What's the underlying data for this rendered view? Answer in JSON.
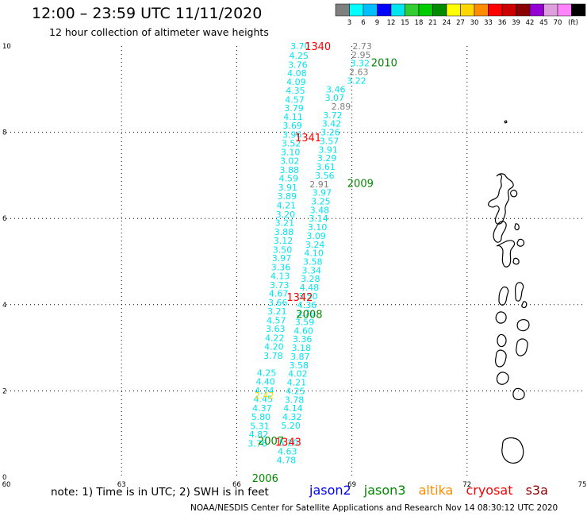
{
  "header": {
    "title": "12:00 – 23:59 UTC 11/11/2020",
    "subtitle": "12 hour collection of altimeter wave heights"
  },
  "colorbar": {
    "unit_label": "(ft)",
    "levels": [
      "3",
      "6",
      "9",
      "12",
      "15",
      "18",
      "21",
      "24",
      "27",
      "30",
      "33",
      "36",
      "39",
      "42",
      "45",
      "70"
    ],
    "colors": [
      "#7f7f7f",
      "#00ffff",
      "#00bfff",
      "#0000ff",
      "#00e5ee",
      "#32cd32",
      "#00cd00",
      "#008b00",
      "#ffff00",
      "#ffd700",
      "#ff8c00",
      "#ff0000",
      "#cd0000",
      "#8b0000",
      "#9400d3",
      "#dda0dd",
      "#ff83fa",
      "#000000"
    ]
  },
  "footer": {
    "note": "note: 1) Time is in UTC; 2) SWH is in feet",
    "satellites": [
      {
        "name": "jason2",
        "color": "#0000ff"
      },
      {
        "name": "jason3",
        "color": "#008800"
      },
      {
        "name": "altika",
        "color": "#ff8c00"
      },
      {
        "name": "cryosat",
        "color": "#ff0000"
      },
      {
        "name": "s3a",
        "color": "#8b0000"
      }
    ],
    "credit": "NOAA/NESDIS Center for Satellite Applications and Research    Nov 14 08:30:12 UTC 2020"
  },
  "chart_data": {
    "type": "scatter",
    "title": "12:00 – 23:59 UTC 11/11/2020",
    "xlim": [
      60,
      75
    ],
    "ylim": [
      0,
      10
    ],
    "x_ticks": [
      60,
      63,
      66,
      69,
      72,
      75
    ],
    "y_ticks": [
      0,
      2,
      4,
      6,
      8,
      10
    ],
    "grid": "dotted",
    "series": [
      {
        "name": "",
        "color": "#00e5ee",
        "points": [
          {
            "x": 67.65,
            "y": 10.0,
            "label": "3.70"
          },
          {
            "x": 67.62,
            "y": 9.78,
            "label": "4.25"
          },
          {
            "x": 67.59,
            "y": 9.57,
            "label": "3.76"
          },
          {
            "x": 67.57,
            "y": 9.37,
            "label": "4.08"
          },
          {
            "x": 67.55,
            "y": 9.17,
            "label": "4.09"
          },
          {
            "x": 67.53,
            "y": 8.97,
            "label": "4.35"
          },
          {
            "x": 67.51,
            "y": 8.76,
            "label": "4.57"
          },
          {
            "x": 67.49,
            "y": 8.56,
            "label": "3.79"
          },
          {
            "x": 67.47,
            "y": 8.36,
            "label": "4.11"
          },
          {
            "x": 67.45,
            "y": 8.16,
            "label": "3.69"
          },
          {
            "x": 67.44,
            "y": 7.95,
            "label": "3.96"
          },
          {
            "x": 67.42,
            "y": 7.74,
            "label": "3.52"
          },
          {
            "x": 67.4,
            "y": 7.54,
            "label": "3.10"
          },
          {
            "x": 67.38,
            "y": 7.34,
            "label": "3.02"
          },
          {
            "x": 67.37,
            "y": 7.13,
            "label": "3.88"
          },
          {
            "x": 67.35,
            "y": 6.93,
            "label": "4.59"
          },
          {
            "x": 67.33,
            "y": 6.72,
            "label": "3.91"
          },
          {
            "x": 67.31,
            "y": 6.52,
            "label": "3.89"
          },
          {
            "x": 67.29,
            "y": 6.31,
            "label": "4.21"
          },
          {
            "x": 67.27,
            "y": 6.1,
            "label": "3.20"
          },
          {
            "x": 67.25,
            "y": 5.9,
            "label": "3.21"
          },
          {
            "x": 67.23,
            "y": 5.69,
            "label": "3.88"
          },
          {
            "x": 67.21,
            "y": 5.49,
            "label": "3.12"
          },
          {
            "x": 67.19,
            "y": 5.28,
            "label": "3.50"
          },
          {
            "x": 67.17,
            "y": 5.08,
            "label": "3.97"
          },
          {
            "x": 67.15,
            "y": 4.87,
            "label": "3.36"
          },
          {
            "x": 67.13,
            "y": 4.67,
            "label": "4.13"
          },
          {
            "x": 67.11,
            "y": 4.46,
            "label": "3.73"
          },
          {
            "x": 67.09,
            "y": 4.26,
            "label": "4.67"
          },
          {
            "x": 67.07,
            "y": 4.05,
            "label": "3.66"
          },
          {
            "x": 67.05,
            "y": 3.85,
            "label": "3.21"
          },
          {
            "x": 67.03,
            "y": 3.64,
            "label": "4.57"
          },
          {
            "x": 67.01,
            "y": 3.44,
            "label": "3.63"
          },
          {
            "x": 66.99,
            "y": 3.23,
            "label": "4.22"
          },
          {
            "x": 66.97,
            "y": 3.03,
            "label": "4.20"
          },
          {
            "x": 66.95,
            "y": 2.82,
            "label": "3.78"
          },
          {
            "x": 66.78,
            "y": 2.42,
            "label": "4.25"
          },
          {
            "x": 66.75,
            "y": 2.22,
            "label": "4.40"
          },
          {
            "x": 66.72,
            "y": 2.01,
            "label": "4.74"
          },
          {
            "x": 66.69,
            "y": 1.81,
            "label": "4.45"
          },
          {
            "x": 66.66,
            "y": 1.6,
            "label": "4.37"
          },
          {
            "x": 66.63,
            "y": 1.4,
            "label": "5.80"
          },
          {
            "x": 66.6,
            "y": 1.19,
            "label": "5.31"
          },
          {
            "x": 66.57,
            "y": 0.99,
            "label": "4.82"
          },
          {
            "x": 66.54,
            "y": 0.78,
            "label": "3.76"
          }
        ]
      },
      {
        "name": "",
        "color": "#00e5ee",
        "points": [
          {
            "x": 68.58,
            "y": 9.0,
            "label": "3.46"
          },
          {
            "x": 68.55,
            "y": 8.8,
            "label": "3.07"
          },
          {
            "x": 68.5,
            "y": 8.4,
            "label": "3.72"
          },
          {
            "x": 68.47,
            "y": 8.2,
            "label": "3.42"
          },
          {
            "x": 68.44,
            "y": 8.0,
            "label": "3.26"
          },
          {
            "x": 68.41,
            "y": 7.8,
            "label": "3.57"
          },
          {
            "x": 68.38,
            "y": 7.6,
            "label": "3.91"
          },
          {
            "x": 68.35,
            "y": 7.4,
            "label": "3.29"
          },
          {
            "x": 68.32,
            "y": 7.2,
            "label": "3.61"
          },
          {
            "x": 68.29,
            "y": 7.0,
            "label": "3.56"
          },
          {
            "x": 68.22,
            "y": 6.6,
            "label": "3.97"
          },
          {
            "x": 68.19,
            "y": 6.4,
            "label": "3.25"
          },
          {
            "x": 68.16,
            "y": 6.2,
            "label": "3.48"
          },
          {
            "x": 68.13,
            "y": 6.0,
            "label": "3.14"
          },
          {
            "x": 68.1,
            "y": 5.8,
            "label": "3.10"
          },
          {
            "x": 68.07,
            "y": 5.6,
            "label": "3.09"
          },
          {
            "x": 68.04,
            "y": 5.4,
            "label": "3.24"
          },
          {
            "x": 68.01,
            "y": 5.2,
            "label": "4.10"
          },
          {
            "x": 67.98,
            "y": 5.0,
            "label": "3.58"
          },
          {
            "x": 67.95,
            "y": 4.8,
            "label": "3.34"
          },
          {
            "x": 67.92,
            "y": 4.6,
            "label": "3.28"
          },
          {
            "x": 67.89,
            "y": 4.4,
            "label": "4.48"
          },
          {
            "x": 67.86,
            "y": 4.2,
            "label": "3.50"
          },
          {
            "x": 67.83,
            "y": 4.0,
            "label": "4.36"
          },
          {
            "x": 67.8,
            "y": 3.8,
            "label": "3.79"
          },
          {
            "x": 67.77,
            "y": 3.6,
            "label": "3.59"
          },
          {
            "x": 67.74,
            "y": 3.4,
            "label": "4.60"
          },
          {
            "x": 67.71,
            "y": 3.2,
            "label": "3.36"
          },
          {
            "x": 67.68,
            "y": 3.0,
            "label": "3.18"
          },
          {
            "x": 67.65,
            "y": 2.8,
            "label": "3.87"
          },
          {
            "x": 67.62,
            "y": 2.6,
            "label": "3.58"
          },
          {
            "x": 67.59,
            "y": 2.4,
            "label": "4.02"
          },
          {
            "x": 67.56,
            "y": 2.2,
            "label": "4.21"
          },
          {
            "x": 67.53,
            "y": 2.0,
            "label": "4.25"
          },
          {
            "x": 67.5,
            "y": 1.8,
            "label": "3.78"
          },
          {
            "x": 67.47,
            "y": 1.6,
            "label": "4.14"
          },
          {
            "x": 67.44,
            "y": 1.4,
            "label": "4.32"
          },
          {
            "x": 67.41,
            "y": 1.2,
            "label": "5.20"
          },
          {
            "x": 67.35,
            "y": 0.8,
            "label": "5.20"
          },
          {
            "x": 67.32,
            "y": 0.6,
            "label": "4.63"
          },
          {
            "x": 67.29,
            "y": 0.4,
            "label": "4.78"
          }
        ]
      },
      {
        "name": "",
        "color": "#7f7f7f",
        "points": [
          {
            "x": 69.27,
            "y": 10.0,
            "label": "2.73"
          },
          {
            "x": 69.24,
            "y": 9.8,
            "label": "2.95"
          },
          {
            "x": 69.18,
            "y": 9.4,
            "label": "2.63"
          },
          {
            "x": 68.72,
            "y": 8.6,
            "label": "2.89"
          },
          {
            "x": 68.15,
            "y": 6.8,
            "label": "2.91"
          }
        ]
      },
      {
        "name": "",
        "color": "#00e5ee",
        "points": [
          {
            "x": 69.21,
            "y": 9.6,
            "label": "3.32"
          },
          {
            "x": 69.12,
            "y": 9.2,
            "label": "3.22"
          }
        ]
      },
      {
        "name": "",
        "color": "#ffd700",
        "points": [
          {
            "x": 66.72,
            "y": 1.9,
            "label": "2.42"
          }
        ]
      }
    ],
    "annotations": [
      {
        "x": 67.77,
        "y": 10.0,
        "text": "1340",
        "color": "#ff0000"
      },
      {
        "x": 69.5,
        "y": 9.62,
        "text": "2010",
        "color": "#008800"
      },
      {
        "x": 67.52,
        "y": 7.88,
        "text": "1341",
        "color": "#ff0000"
      },
      {
        "x": 68.88,
        "y": 6.82,
        "text": "2009",
        "color": "#008800"
      },
      {
        "x": 67.3,
        "y": 4.18,
        "text": "1342",
        "color": "#ff0000"
      },
      {
        "x": 67.55,
        "y": 3.78,
        "text": "2008",
        "color": "#008800"
      },
      {
        "x": 67.0,
        "y": 0.82,
        "text": "1343",
        "color": "#ff0000"
      },
      {
        "x": 66.55,
        "y": 0.85,
        "text": "2007",
        "color": "#008800"
      },
      {
        "x": 66.4,
        "y": -0.02,
        "text": "2006",
        "color": "#008800"
      }
    ]
  }
}
